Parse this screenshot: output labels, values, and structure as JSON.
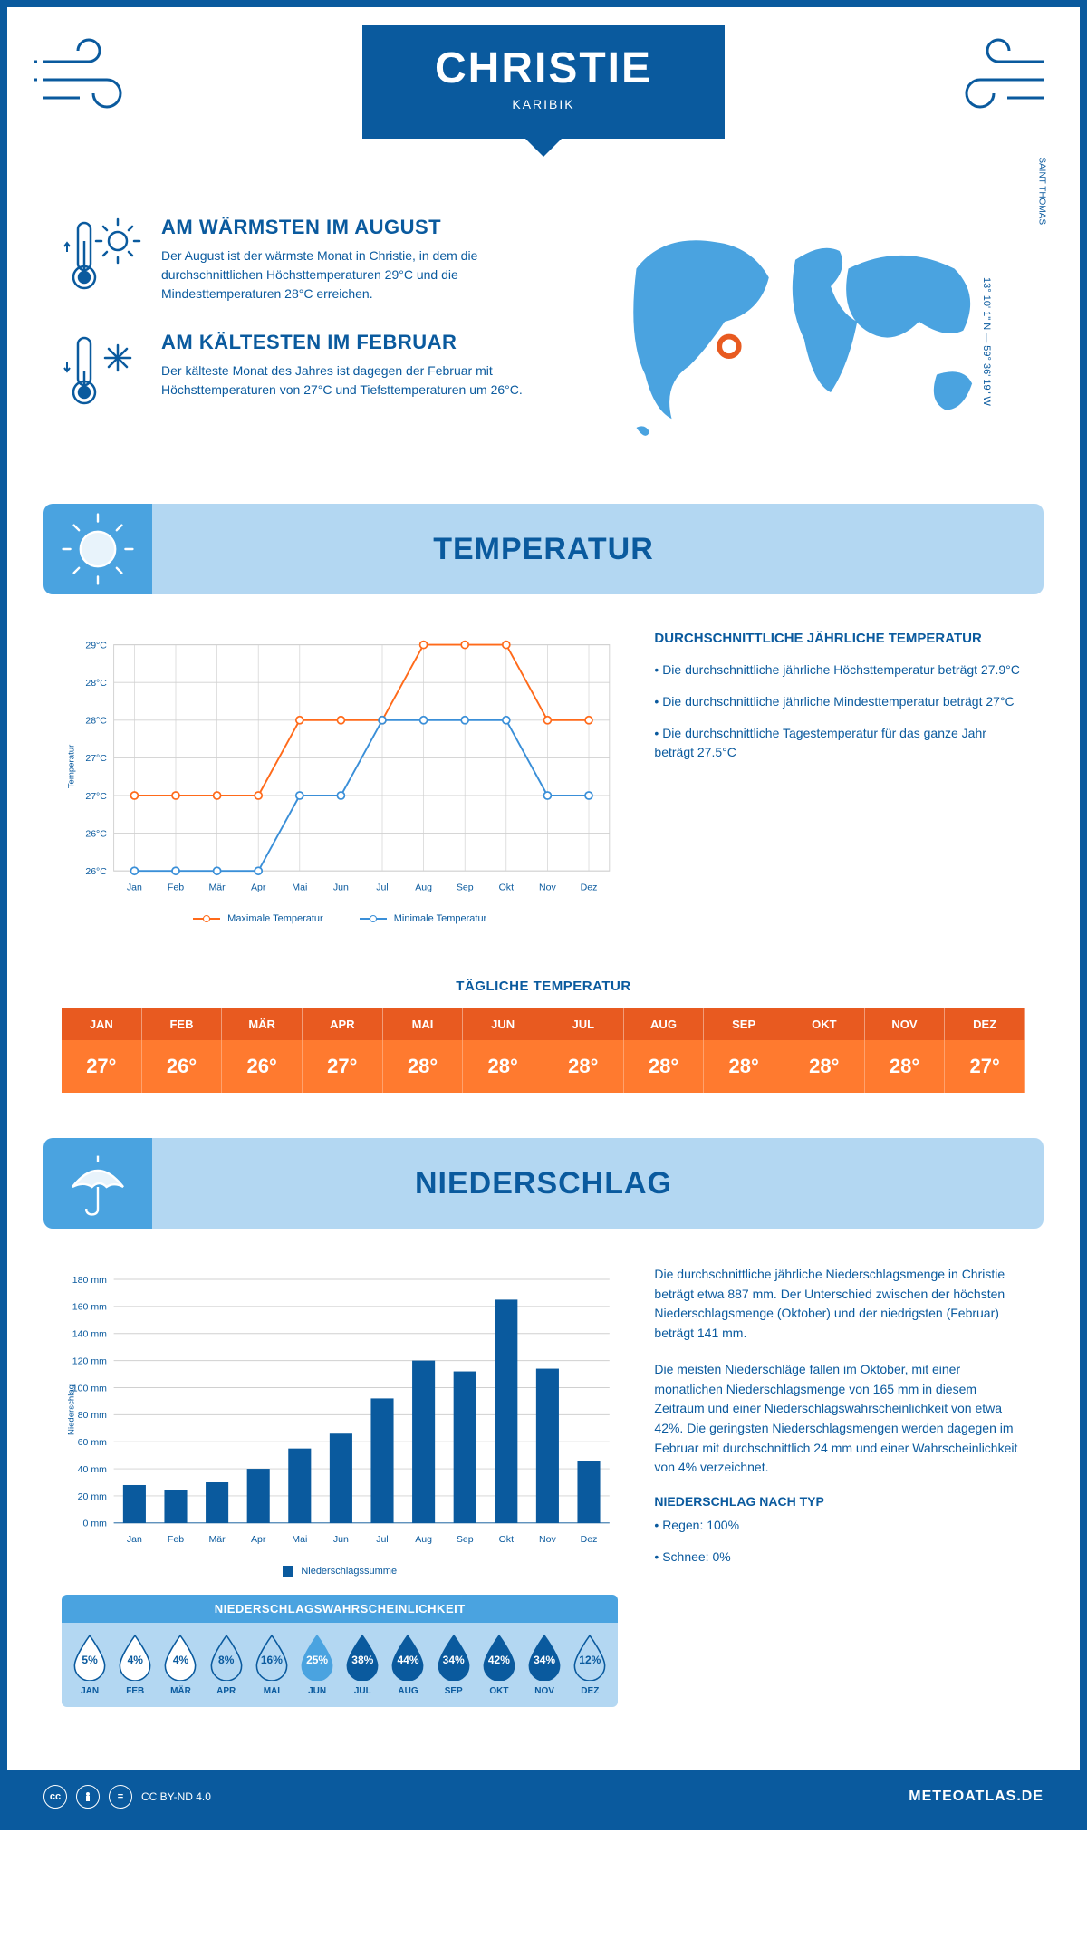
{
  "colors": {
    "primary": "#0a5a9e",
    "accent_light": "#b3d7f2",
    "accent_mid": "#4aa3e0",
    "high_temp": "#ff7a2f",
    "high_temp_dark": "#e85a20",
    "line_max": "#ff6a1a",
    "line_min": "#3a8fd8",
    "grid": "#d0d0d0",
    "white": "#ffffff"
  },
  "header": {
    "title": "CHRISTIE",
    "subtitle": "KARIBIK"
  },
  "location": {
    "coords": "13° 10' 1\" N — 59° 36' 19\" W",
    "place": "SAINT THOMAS"
  },
  "facts": {
    "warm": {
      "heading": "AM WÄRMSTEN IM AUGUST",
      "text": "Der August ist der wärmste Monat in Christie, in dem die durchschnittlichen Höchsttemperaturen 29°C und die Mindesttemperaturen 28°C erreichen."
    },
    "cold": {
      "heading": "AM KÄLTESTEN IM FEBRUAR",
      "text": "Der kälteste Monat des Jahres ist dagegen der Februar mit Höchsttemperaturen von 27°C und Tiefsttemperaturen um 26°C."
    }
  },
  "months_short": [
    "Jan",
    "Feb",
    "Mär",
    "Apr",
    "Mai",
    "Jun",
    "Jul",
    "Aug",
    "Sep",
    "Okt",
    "Nov",
    "Dez"
  ],
  "months_upper": [
    "JAN",
    "FEB",
    "MÄR",
    "APR",
    "MAI",
    "JUN",
    "JUL",
    "AUG",
    "SEP",
    "OKT",
    "NOV",
    "DEZ"
  ],
  "temperature_section": {
    "title": "TEMPERATUR",
    "chart": {
      "type": "line",
      "ylabel": "Temperatur",
      "ylim": [
        26,
        29
      ],
      "ytick_step": 0.5,
      "yticks": [
        "26°C",
        "26°C",
        "27°C",
        "27°C",
        "28°C",
        "28°C",
        "29°C"
      ],
      "max_series": [
        27,
        27,
        27,
        27,
        28,
        28,
        28,
        29,
        29,
        29,
        28,
        28
      ],
      "min_series": [
        26,
        26,
        26,
        26,
        27,
        27,
        28,
        28,
        28,
        28,
        27,
        27
      ],
      "max_color": "#ff6a1a",
      "min_color": "#3a8fd8",
      "grid_color": "#d0d0d0",
      "line_width": 2,
      "marker": "circle",
      "marker_size": 5,
      "background": "#ffffff",
      "legend": {
        "max": "Maximale Temperatur",
        "min": "Minimale Temperatur"
      }
    },
    "side": {
      "heading": "DURCHSCHNITTLICHE JÄHRLICHE TEMPERATUR",
      "bullets": [
        "• Die durchschnittliche jährliche Höchsttemperatur beträgt 27.9°C",
        "• Die durchschnittliche jährliche Mindesttemperatur beträgt 27°C",
        "• Die durchschnittliche Tagestemperatur für das ganze Jahr beträgt 27.5°C"
      ]
    },
    "daily": {
      "title": "TÄGLICHE TEMPERATUR",
      "values": [
        "27°",
        "26°",
        "26°",
        "27°",
        "28°",
        "28°",
        "28°",
        "28°",
        "28°",
        "28°",
        "28°",
        "27°"
      ],
      "header_bg": "#e85a20",
      "cell_bg": "#ff7a2f"
    }
  },
  "rain_section": {
    "title": "NIEDERSCHLAG",
    "chart": {
      "type": "bar",
      "ylabel": "Niederschlag",
      "ylim": [
        0,
        180
      ],
      "ytick_step": 20,
      "values": [
        28,
        24,
        30,
        40,
        55,
        66,
        92,
        120,
        112,
        165,
        114,
        46
      ],
      "bar_color": "#0a5a9e",
      "grid_color": "#d0d0d0",
      "bar_width": 0.55,
      "legend": "Niederschlagssumme",
      "unit": "mm"
    },
    "prob": {
      "title": "NIEDERSCHLAGSWAHRSCHEINLICHKEIT",
      "values": [
        5,
        4,
        4,
        8,
        16,
        25,
        38,
        44,
        34,
        42,
        34,
        12
      ],
      "drop_palette": {
        "low": "#ffffff",
        "mid1": "#b3d7f2",
        "mid2": "#4aa3e0",
        "high": "#0a5a9e"
      }
    },
    "text": {
      "p1": "Die durchschnittliche jährliche Niederschlagsmenge in Christie beträgt etwa 887 mm. Der Unterschied zwischen der höchsten Niederschlagsmenge (Oktober) und der niedrigsten (Februar) beträgt 141 mm.",
      "p2": "Die meisten Niederschläge fallen im Oktober, mit einer monatlichen Niederschlagsmenge von 165 mm in diesem Zeitraum und einer Niederschlagswahrscheinlichkeit von etwa 42%. Die geringsten Niederschlagsmengen werden dagegen im Februar mit durchschnittlich 24 mm und einer Wahrscheinlichkeit von 4% verzeichnet.",
      "type_heading": "NIEDERSCHLAG NACH TYP",
      "type_rain": "• Regen: 100%",
      "type_snow": "• Schnee: 0%"
    }
  },
  "footer": {
    "license": "CC BY-ND 4.0",
    "site": "METEOATLAS.DE"
  }
}
